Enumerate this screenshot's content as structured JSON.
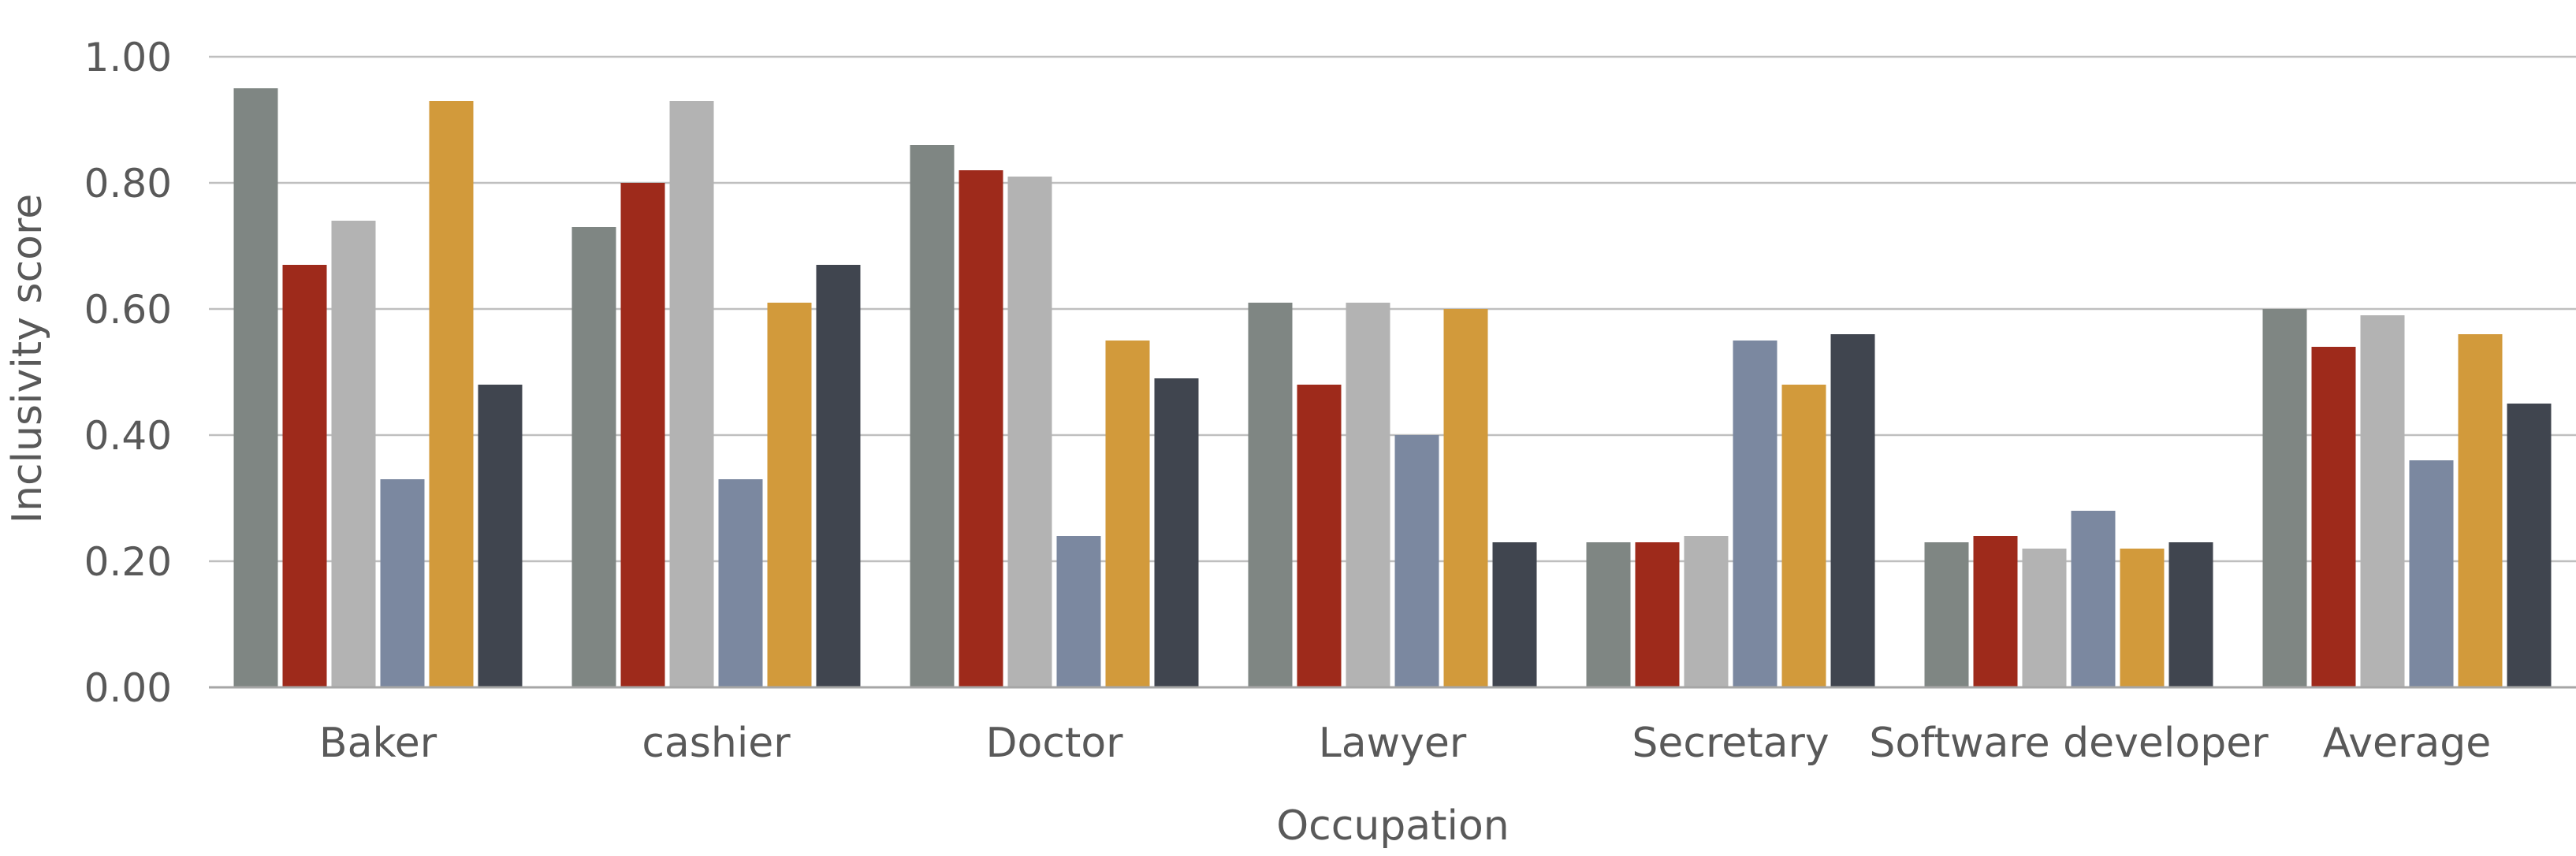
{
  "chart_data": {
    "type": "bar",
    "xlabel": "Occupation",
    "ylabel": "Inclusivity score",
    "ylim": [
      0,
      1.0
    ],
    "yticks": [
      "0.00",
      "0.20",
      "0.40",
      "0.60",
      "0.80",
      "1.00"
    ],
    "grid": true,
    "legend": "none",
    "categories": [
      "Baker",
      "cashier",
      "Doctor",
      "Lawyer",
      "Secretary",
      "Software developer",
      "Average"
    ],
    "colors": [
      "#7f8683",
      "#9e2a1b",
      "#b3b3b3",
      "#7b88a0",
      "#d29a3b",
      "#40454f"
    ],
    "series": [
      {
        "values": [
          0.95,
          0.73,
          0.86,
          0.61,
          0.23,
          0.23,
          0.6
        ]
      },
      {
        "values": [
          0.67,
          0.8,
          0.82,
          0.48,
          0.23,
          0.24,
          0.54
        ]
      },
      {
        "values": [
          0.74,
          0.93,
          0.81,
          0.61,
          0.24,
          0.22,
          0.59
        ]
      },
      {
        "values": [
          0.33,
          0.33,
          0.24,
          0.4,
          0.55,
          0.28,
          0.36
        ]
      },
      {
        "values": [
          0.93,
          0.61,
          0.55,
          0.6,
          0.48,
          0.22,
          0.56
        ]
      },
      {
        "values": [
          0.48,
          0.67,
          0.49,
          0.23,
          0.56,
          0.23,
          0.45
        ]
      }
    ]
  }
}
